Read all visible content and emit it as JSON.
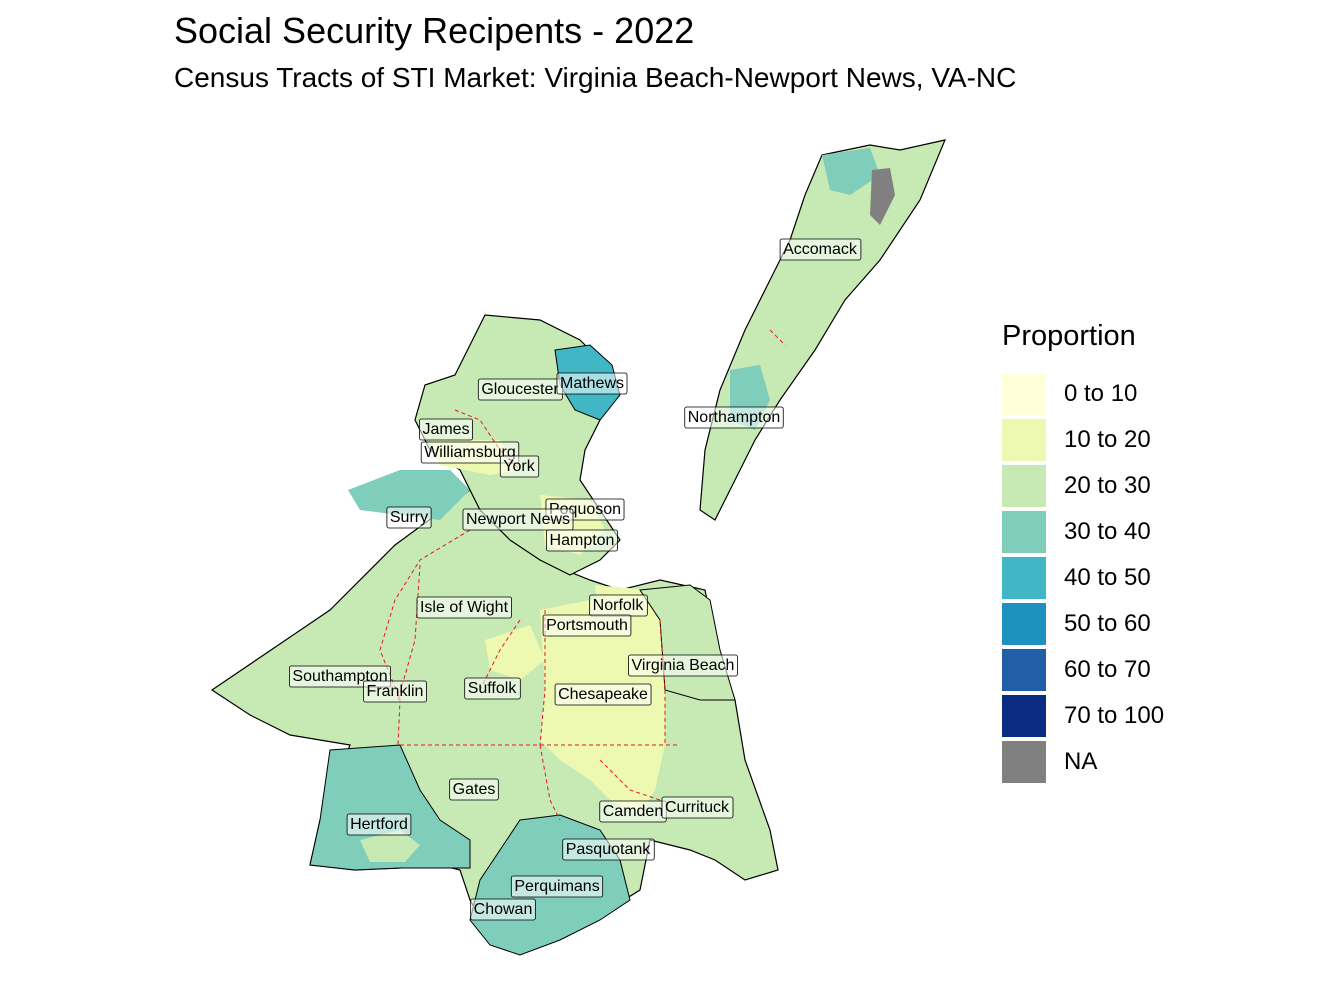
{
  "title": "Social Security Recipents - 2022",
  "subtitle": "Census Tracts of STI Market: Virginia Beach-Newport News, VA-NC",
  "legend": {
    "title": "Proportion",
    "items": [
      {
        "label": "0 to 10",
        "color": "#ffffd9"
      },
      {
        "label": "10 to 20",
        "color": "#edf8b1"
      },
      {
        "label": "20 to 30",
        "color": "#c7e9b4"
      },
      {
        "label": "30 to 40",
        "color": "#7fcdbb"
      },
      {
        "label": "40 to 50",
        "color": "#41b6c4"
      },
      {
        "label": "50 to 60",
        "color": "#1d91c0"
      },
      {
        "label": "60 to 70",
        "color": "#225ea8"
      },
      {
        "label": "70 to 100",
        "color": "#0c2c84"
      },
      {
        "label": "NA",
        "color": "#808080"
      }
    ]
  },
  "places": [
    "Accomack",
    "Northampton",
    "Gloucester",
    "Mathews",
    "James",
    "Williamsburg",
    "York",
    "Poquoson",
    "Surry",
    "Newport News",
    "Hampton",
    "Isle of Wight",
    "Norfolk",
    "Portsmouth",
    "Virginia Beach",
    "Southampton",
    "Franklin",
    "Suffolk",
    "Chesapeake",
    "Gates",
    "Camden",
    "Currituck",
    "Hertford",
    "Pasquotank",
    "Perquimans",
    "Chowan"
  ]
}
